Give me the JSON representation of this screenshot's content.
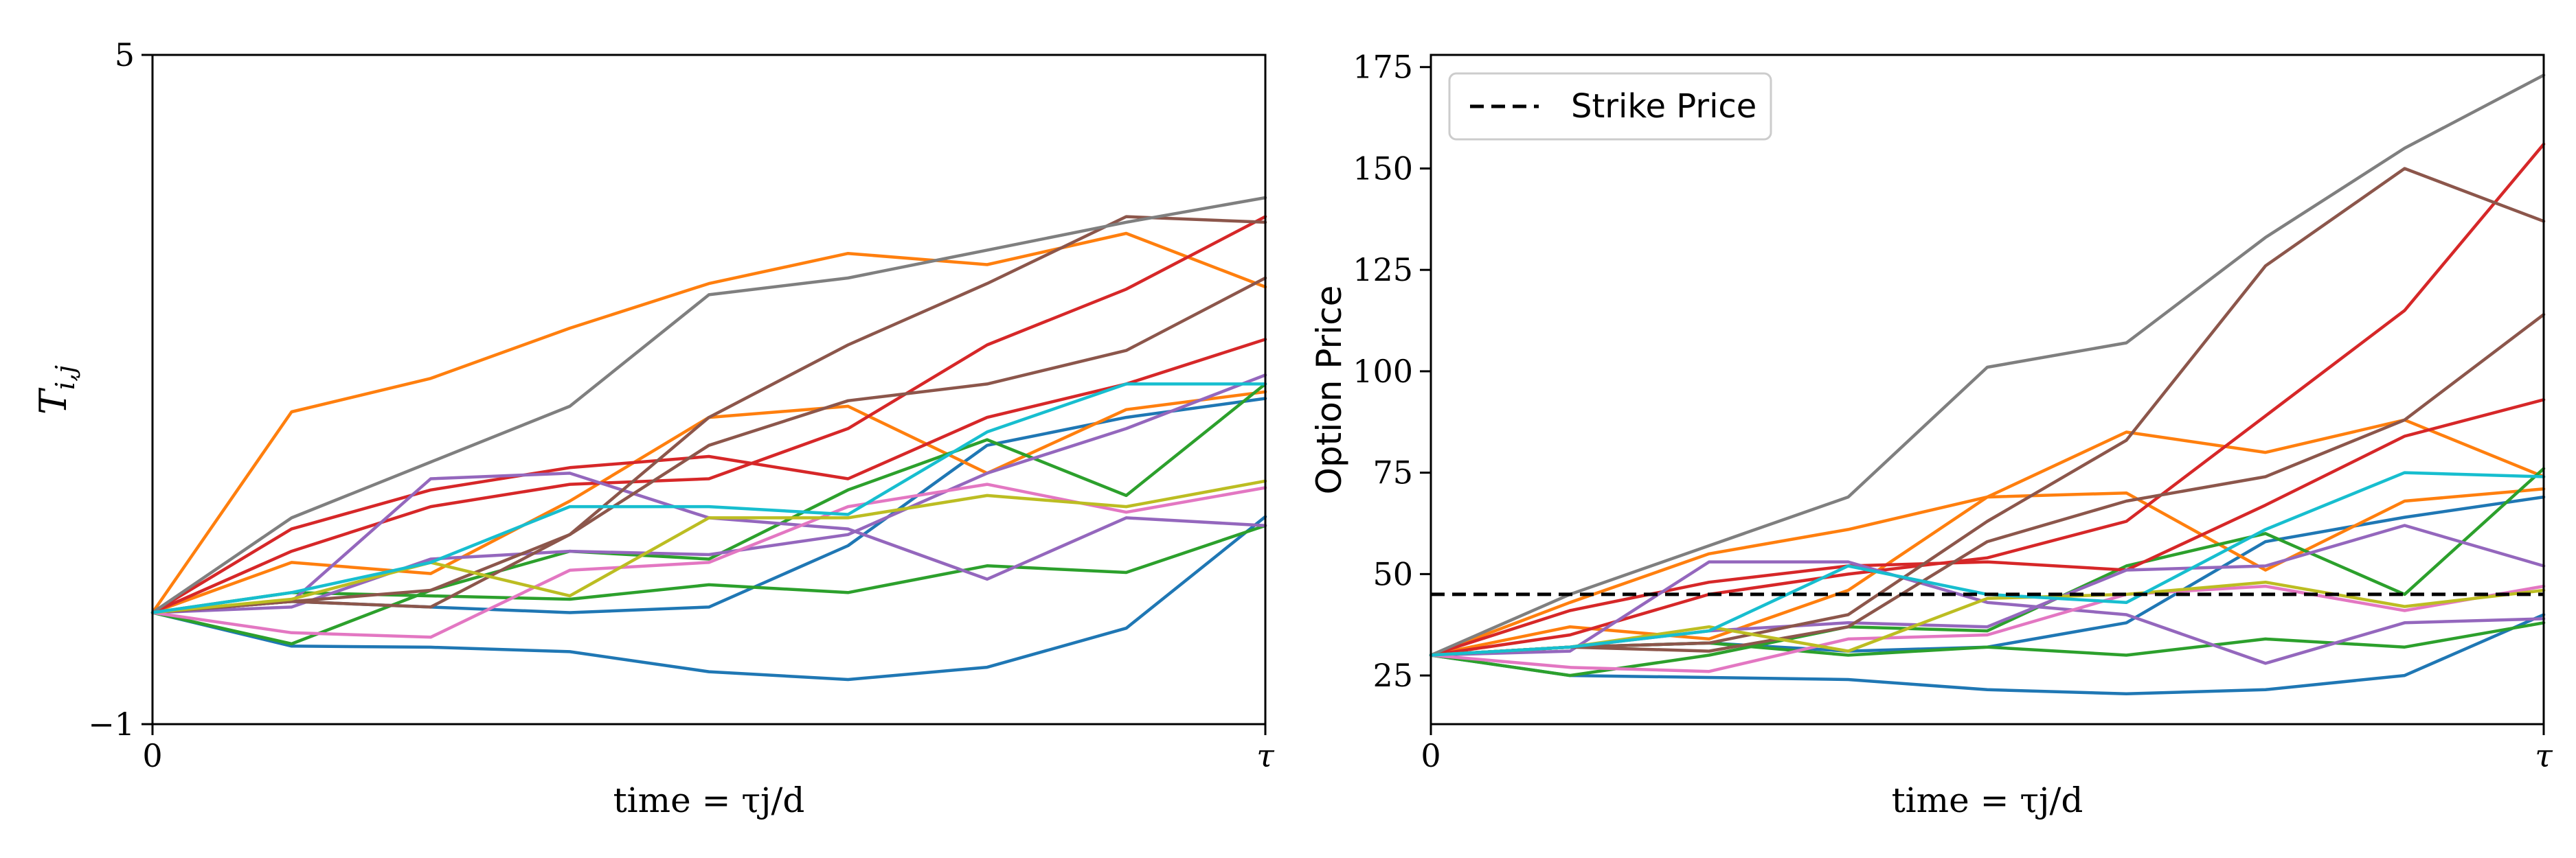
{
  "chart_data": [
    {
      "type": "line",
      "xlabel": "time = τj/d",
      "ylabel": "T_i,j",
      "ylim": [
        -1,
        5
      ],
      "x": [
        0,
        0.125,
        0.25,
        0.375,
        0.5,
        0.625,
        0.75,
        0.875,
        1
      ],
      "x_tick_labels": [
        "0",
        "τ"
      ],
      "y_tick_labels": [
        "5",
        "−1"
      ],
      "y_ticks": [
        5,
        -1
      ],
      "series": [
        {
          "color": "#1f77b4",
          "values": [
            0.0,
            -0.3,
            -0.31,
            -0.35,
            -0.53,
            -0.6,
            -0.49,
            -0.14,
            0.86
          ]
        },
        {
          "color": "#1f77b4",
          "values": [
            0.0,
            0.1,
            0.05,
            0.0,
            0.05,
            0.6,
            1.5,
            1.75,
            1.92
          ]
        },
        {
          "color": "#ff7f0e",
          "values": [
            0.0,
            1.8,
            2.1,
            2.55,
            2.95,
            3.22,
            3.12,
            3.4,
            2.92
          ]
        },
        {
          "color": "#ff7f0e",
          "values": [
            0.0,
            0.45,
            0.35,
            1.0,
            1.75,
            1.85,
            1.25,
            1.82,
            1.98
          ]
        },
        {
          "color": "#2ca02c",
          "values": [
            0.0,
            -0.28,
            0.2,
            0.55,
            0.48,
            1.1,
            1.55,
            1.05,
            2.05
          ]
        },
        {
          "color": "#2ca02c",
          "values": [
            0.0,
            0.18,
            0.15,
            0.12,
            0.25,
            0.18,
            0.42,
            0.36,
            0.78
          ]
        },
        {
          "color": "#d62728",
          "values": [
            0.0,
            0.75,
            1.1,
            1.3,
            1.4,
            1.2,
            1.75,
            2.05,
            2.45
          ]
        },
        {
          "color": "#d62728",
          "values": [
            0.0,
            0.55,
            0.95,
            1.15,
            1.2,
            1.65,
            2.4,
            2.9,
            3.55
          ]
        },
        {
          "color": "#9467bd",
          "values": [
            0.0,
            0.1,
            1.2,
            1.25,
            0.85,
            0.75,
            0.3,
            0.85,
            0.78
          ]
        },
        {
          "color": "#9467bd",
          "values": [
            0.0,
            0.05,
            0.48,
            0.55,
            0.52,
            0.7,
            1.25,
            1.65,
            2.13
          ]
        },
        {
          "color": "#8c564b",
          "values": [
            0.0,
            0.1,
            0.05,
            0.7,
            1.5,
            1.9,
            2.05,
            2.35,
            3.0
          ]
        },
        {
          "color": "#8c564b",
          "values": [
            0.0,
            0.1,
            0.2,
            0.7,
            1.75,
            2.4,
            2.95,
            3.55,
            3.5
          ]
        },
        {
          "color": "#e377c2",
          "values": [
            0.0,
            -0.18,
            -0.22,
            0.38,
            0.45,
            0.95,
            1.15,
            0.9,
            1.12
          ]
        },
        {
          "color": "#7f7f7f",
          "values": [
            0.0,
            0.85,
            1.35,
            1.85,
            2.85,
            3.0,
            3.25,
            3.5,
            3.72
          ]
        },
        {
          "color": "#bcbd22",
          "values": [
            0.0,
            0.12,
            0.45,
            0.15,
            0.85,
            0.85,
            1.05,
            0.95,
            1.18
          ]
        },
        {
          "color": "#17becf",
          "values": [
            0.0,
            0.18,
            0.45,
            0.95,
            0.95,
            0.88,
            1.62,
            2.05,
            2.05
          ]
        }
      ]
    },
    {
      "type": "line",
      "xlabel": "time = τj/d",
      "ylabel": "Option Price",
      "ylim": [
        13,
        178
      ],
      "x": [
        0,
        0.125,
        0.25,
        0.375,
        0.5,
        0.625,
        0.75,
        0.875,
        1
      ],
      "x_tick_labels": [
        "0",
        "τ"
      ],
      "y_ticks": [
        25,
        50,
        75,
        100,
        125,
        150,
        175
      ],
      "y_tick_labels": [
        "25",
        "50",
        "75",
        "100",
        "125",
        "150",
        "175"
      ],
      "legend": {
        "position": "top-left",
        "entries": [
          "Strike Price"
        ]
      },
      "strike_price": 45,
      "series": [
        {
          "color": "#1f77b4",
          "values": [
            30,
            25,
            24.5,
            24,
            21.5,
            20.5,
            21.5,
            25,
            40
          ]
        },
        {
          "color": "#1f77b4",
          "values": [
            30,
            32,
            33,
            31,
            32,
            38,
            58,
            64,
            69
          ]
        },
        {
          "color": "#ff7f0e",
          "values": [
            30,
            43,
            55,
            61,
            69,
            85,
            80,
            88,
            74
          ]
        },
        {
          "color": "#ff7f0e",
          "values": [
            30,
            37,
            34,
            46,
            69,
            70,
            51,
            68,
            71
          ]
        },
        {
          "color": "#2ca02c",
          "values": [
            30,
            25,
            30,
            37,
            36,
            52,
            60,
            45,
            76
          ]
        },
        {
          "color": "#2ca02c",
          "values": [
            30,
            32,
            33,
            30,
            32,
            30,
            34,
            32,
            38
          ]
        },
        {
          "color": "#d62728",
          "values": [
            30,
            41,
            48,
            52,
            53,
            51,
            67,
            84,
            93
          ]
        },
        {
          "color": "#d62728",
          "values": [
            30,
            35,
            45,
            50,
            54,
            63,
            89,
            115,
            156
          ]
        },
        {
          "color": "#9467bd",
          "values": [
            30,
            31,
            53,
            53,
            43,
            40,
            28,
            38,
            39
          ]
        },
        {
          "color": "#9467bd",
          "values": [
            30,
            32,
            36,
            38,
            37,
            51,
            52,
            62,
            52
          ]
        },
        {
          "color": "#8c564b",
          "values": [
            30,
            32,
            31,
            37,
            58,
            68,
            74,
            88,
            114
          ]
        },
        {
          "color": "#8c564b",
          "values": [
            30,
            32,
            33,
            40,
            63,
            83,
            126,
            150,
            137
          ]
        },
        {
          "color": "#e377c2",
          "values": [
            30,
            27,
            26,
            34,
            35,
            45,
            47,
            41,
            47
          ]
        },
        {
          "color": "#7f7f7f",
          "values": [
            30,
            45,
            57,
            69,
            101,
            107,
            133,
            155,
            173
          ]
        },
        {
          "color": "#bcbd22",
          "values": [
            30,
            32,
            37,
            31,
            44,
            45,
            48,
            42,
            46
          ]
        },
        {
          "color": "#17becf",
          "values": [
            30,
            32,
            36,
            52,
            45,
            43,
            61,
            75,
            74
          ]
        }
      ]
    }
  ]
}
